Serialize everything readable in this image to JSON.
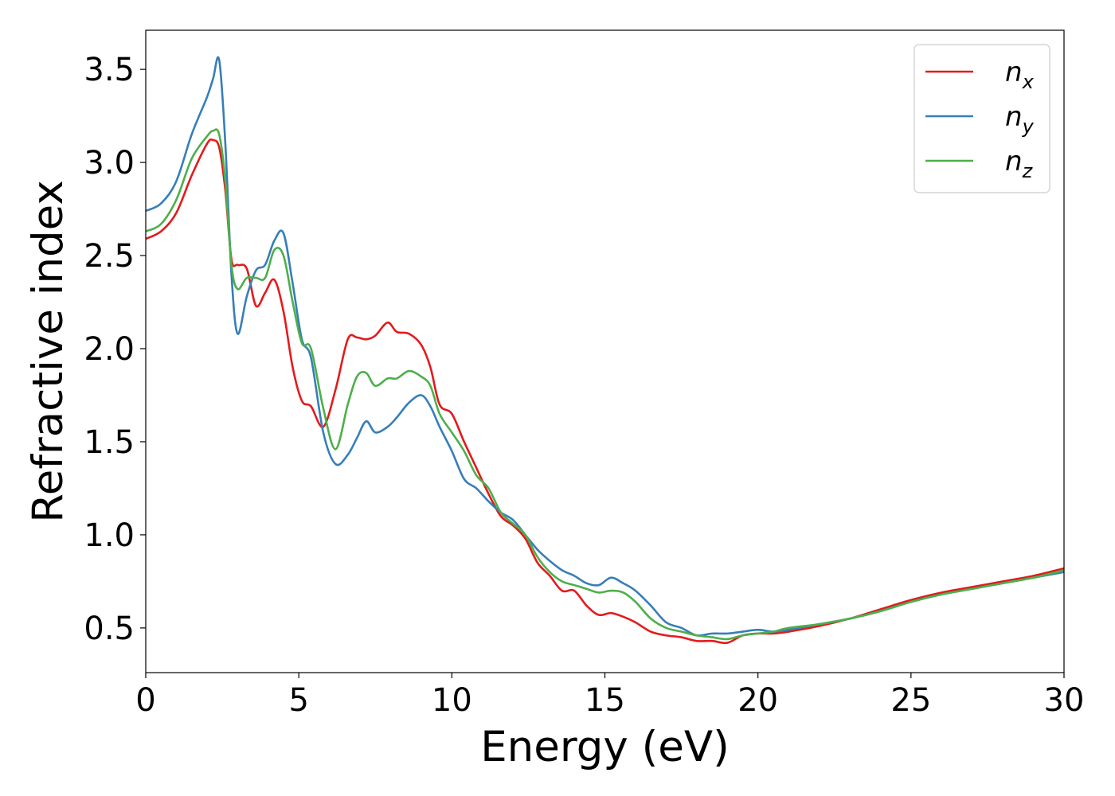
{
  "chart_data": {
    "type": "line",
    "title": "",
    "xlabel": "Energy (eV)",
    "ylabel": "Refractive index",
    "xlim": [
      0,
      30
    ],
    "ylim": [
      0.26,
      3.71
    ],
    "xticks": [
      0,
      5,
      10,
      15,
      20,
      25,
      30
    ],
    "xtick_labels": [
      "0",
      "5",
      "10",
      "15",
      "20",
      "25",
      "30"
    ],
    "yticks": [
      0.5,
      1.0,
      1.5,
      2.0,
      2.5,
      3.0,
      3.5
    ],
    "ytick_labels": [
      "0.5",
      "1.0",
      "1.5",
      "2.0",
      "2.5",
      "3.0",
      "3.5"
    ],
    "grid": false,
    "legend": "top-right",
    "series": [
      {
        "name": "n",
        "subscript": "x",
        "color": "#e41a1c",
        "x": [
          0,
          0.5,
          1,
          1.5,
          2,
          2.2,
          2.4,
          2.6,
          2.8,
          3.0,
          3.3,
          3.6,
          3.9,
          4.2,
          4.5,
          4.8,
          5.1,
          5.4,
          5.8,
          6.2,
          6.6,
          6.9,
          7.2,
          7.5,
          7.9,
          8.2,
          8.6,
          9.0,
          9.3,
          9.6,
          10.0,
          10.4,
          10.8,
          11.2,
          11.6,
          12.0,
          12.4,
          12.8,
          13.2,
          13.6,
          14.0,
          14.4,
          14.8,
          15.2,
          15.6,
          16.0,
          16.5,
          17.0,
          17.5,
          18.0,
          18.5,
          19.0,
          19.5,
          20.0,
          20.5,
          21.0,
          22.0,
          23.0,
          24.0,
          25.0,
          26.0,
          27.0,
          28.0,
          29.0,
          30.0
        ],
        "y": [
          2.59,
          2.63,
          2.73,
          2.93,
          3.1,
          3.12,
          3.08,
          2.85,
          2.48,
          2.45,
          2.43,
          2.23,
          2.3,
          2.37,
          2.2,
          1.9,
          1.72,
          1.69,
          1.58,
          1.78,
          2.05,
          2.06,
          2.05,
          2.07,
          2.14,
          2.09,
          2.08,
          2.02,
          1.9,
          1.7,
          1.65,
          1.5,
          1.36,
          1.22,
          1.1,
          1.05,
          0.98,
          0.85,
          0.78,
          0.7,
          0.7,
          0.62,
          0.57,
          0.58,
          0.56,
          0.53,
          0.48,
          0.46,
          0.45,
          0.43,
          0.43,
          0.42,
          0.46,
          0.47,
          0.47,
          0.48,
          0.51,
          0.55,
          0.6,
          0.65,
          0.69,
          0.72,
          0.75,
          0.78,
          0.82
        ]
      },
      {
        "name": "n",
        "subscript": "y",
        "color": "#377eb8",
        "x": [
          0,
          0.5,
          1,
          1.5,
          2,
          2.2,
          2.4,
          2.6,
          2.8,
          3.0,
          3.3,
          3.6,
          3.9,
          4.2,
          4.5,
          4.8,
          5.1,
          5.4,
          5.8,
          6.2,
          6.6,
          6.9,
          7.2,
          7.5,
          7.9,
          8.2,
          8.6,
          9.0,
          9.3,
          9.6,
          10.0,
          10.4,
          10.8,
          11.2,
          11.6,
          12.0,
          12.4,
          12.8,
          13.2,
          13.6,
          14.0,
          14.4,
          14.8,
          15.2,
          15.6,
          16.0,
          16.5,
          17.0,
          17.5,
          18.0,
          18.5,
          19.0,
          19.5,
          20.0,
          20.5,
          21.0,
          22.0,
          23.0,
          24.0,
          25.0,
          26.0,
          27.0,
          28.0,
          29.0,
          30.0
        ],
        "y": [
          2.74,
          2.78,
          2.9,
          3.15,
          3.35,
          3.45,
          3.55,
          3.1,
          2.4,
          2.08,
          2.28,
          2.42,
          2.45,
          2.58,
          2.62,
          2.35,
          2.05,
          1.95,
          1.55,
          1.38,
          1.43,
          1.52,
          1.61,
          1.55,
          1.58,
          1.63,
          1.71,
          1.75,
          1.69,
          1.58,
          1.45,
          1.3,
          1.25,
          1.18,
          1.12,
          1.08,
          1.0,
          0.92,
          0.86,
          0.81,
          0.78,
          0.74,
          0.73,
          0.77,
          0.74,
          0.7,
          0.62,
          0.53,
          0.5,
          0.46,
          0.47,
          0.47,
          0.48,
          0.49,
          0.48,
          0.49,
          0.52,
          0.55,
          0.59,
          0.64,
          0.68,
          0.71,
          0.74,
          0.77,
          0.8
        ]
      },
      {
        "name": "n",
        "subscript": "z",
        "color": "#4daf4a",
        "x": [
          0,
          0.5,
          1,
          1.5,
          2,
          2.2,
          2.4,
          2.6,
          2.8,
          3.0,
          3.3,
          3.6,
          3.9,
          4.2,
          4.5,
          4.8,
          5.1,
          5.4,
          5.8,
          6.2,
          6.6,
          6.9,
          7.2,
          7.5,
          7.9,
          8.2,
          8.6,
          9.0,
          9.3,
          9.6,
          10.0,
          10.4,
          10.8,
          11.2,
          11.6,
          12.0,
          12.4,
          12.8,
          13.2,
          13.6,
          14.0,
          14.4,
          14.8,
          15.2,
          15.6,
          16.0,
          16.5,
          17.0,
          17.5,
          18.0,
          18.5,
          19.0,
          19.5,
          20.0,
          20.5,
          21.0,
          22.0,
          23.0,
          24.0,
          25.0,
          26.0,
          27.0,
          28.0,
          29.0,
          30.0
        ],
        "y": [
          2.63,
          2.67,
          2.8,
          3.02,
          3.14,
          3.17,
          3.15,
          2.9,
          2.45,
          2.32,
          2.38,
          2.38,
          2.38,
          2.53,
          2.5,
          2.25,
          2.03,
          2.0,
          1.68,
          1.46,
          1.7,
          1.85,
          1.87,
          1.8,
          1.84,
          1.84,
          1.88,
          1.85,
          1.8,
          1.65,
          1.55,
          1.45,
          1.32,
          1.25,
          1.12,
          1.06,
          1.0,
          0.88,
          0.8,
          0.75,
          0.73,
          0.71,
          0.69,
          0.7,
          0.69,
          0.64,
          0.55,
          0.5,
          0.48,
          0.46,
          0.45,
          0.44,
          0.46,
          0.47,
          0.48,
          0.5,
          0.52,
          0.55,
          0.59,
          0.64,
          0.68,
          0.71,
          0.74,
          0.77,
          0.81
        ]
      }
    ]
  }
}
